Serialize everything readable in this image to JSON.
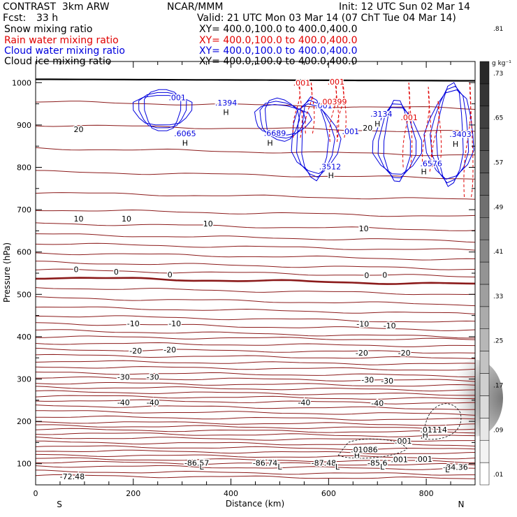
{
  "header": {
    "model": "CONTRAST  3km ARW",
    "center": "NCAR/MMM",
    "init": "Init: 12 UTC Sun 02 Mar 14",
    "fcst_label": "Fcst:",
    "fcst_value": "33 h",
    "valid": "Valid: 21 UTC Mon 03 Mar 14 (07 ChT Tue 04 Mar 14)",
    "fields": [
      {
        "name": "Snow mixing ratio",
        "xy": "XY= 400.0,100.0 to 400.0,400.0",
        "color": "#000000"
      },
      {
        "name": "Rain water mixing ratio",
        "xy": "XY= 400.0,100.0 to 400.0,400.0",
        "color": "#e00000"
      },
      {
        "name": "Cloud water mixing ratio",
        "xy": "XY= 400.0,100.0 to 400.0,400.0",
        "color": "#0000dd"
      },
      {
        "name": "Cloud ice mixing ratio",
        "xy": "XY= 400.0,100.0 to 400.0,400.0",
        "color": "#000000"
      }
    ]
  },
  "chart_data": {
    "type": "cross-section",
    "xlabel": "Distance (km)",
    "ylabel": "Pressure (hPa)",
    "xlim": [
      0,
      900
    ],
    "ylim": [
      1050,
      50
    ],
    "x_ticks": [
      0,
      200,
      400,
      600,
      800
    ],
    "y_ticks": [
      100,
      200,
      300,
      400,
      500,
      600,
      700,
      800,
      900,
      1000
    ],
    "end_labels": {
      "left": "S",
      "right": "N"
    },
    "colorbar": {
      "unit": "g kg⁻¹",
      "labels": [
        ".01",
        ".09",
        ".17",
        ".25",
        ".33",
        ".41",
        ".49",
        ".57",
        ".65",
        ".73",
        ".81"
      ]
    },
    "temperature_labels": [
      {
        "x": 75,
        "p": 70,
        "text": "-72.48"
      },
      {
        "x": 330,
        "p": 102,
        "text": "-86.57"
      },
      {
        "x": 470,
        "p": 102,
        "text": "-86.74"
      },
      {
        "x": 590,
        "p": 102,
        "text": "-87.48"
      },
      {
        "x": 700,
        "p": 102,
        "text": "-85.6"
      },
      {
        "x": 860,
        "p": 92,
        "text": "-84.36"
      },
      {
        "x": 180,
        "p": 245,
        "text": "-40"
      },
      {
        "x": 240,
        "p": 245,
        "text": "-40"
      },
      {
        "x": 550,
        "p": 245,
        "text": "-40"
      },
      {
        "x": 700,
        "p": 243,
        "text": "-40"
      },
      {
        "x": 180,
        "p": 305,
        "text": "-30"
      },
      {
        "x": 240,
        "p": 305,
        "text": "-30"
      },
      {
        "x": 680,
        "p": 298,
        "text": "-30"
      },
      {
        "x": 720,
        "p": 296,
        "text": "-30"
      },
      {
        "x": 205,
        "p": 367,
        "text": "-20"
      },
      {
        "x": 275,
        "p": 369,
        "text": "-20"
      },
      {
        "x": 668,
        "p": 362,
        "text": "-20"
      },
      {
        "x": 755,
        "p": 362,
        "text": "-20"
      },
      {
        "x": 200,
        "p": 431,
        "text": "-10"
      },
      {
        "x": 285,
        "p": 431,
        "text": "-10"
      },
      {
        "x": 670,
        "p": 430,
        "text": "-10"
      },
      {
        "x": 725,
        "p": 426,
        "text": "-10"
      },
      {
        "x": 83,
        "p": 559,
        "text": "0"
      },
      {
        "x": 165,
        "p": 553,
        "text": "0"
      },
      {
        "x": 275,
        "p": 547,
        "text": "0"
      },
      {
        "x": 678,
        "p": 545,
        "text": "0"
      },
      {
        "x": 715,
        "p": 546,
        "text": "0"
      },
      {
        "x": 88,
        "p": 679,
        "text": "10"
      },
      {
        "x": 186,
        "p": 679,
        "text": "10"
      },
      {
        "x": 353,
        "p": 667,
        "text": "10"
      },
      {
        "x": 672,
        "p": 656,
        "text": "10"
      },
      {
        "x": 88,
        "p": 890,
        "text": "20"
      },
      {
        "x": 680,
        "p": 893,
        "text": "20"
      }
    ],
    "extrema": [
      {
        "x": 340,
        "p": 93,
        "text": "L"
      },
      {
        "x": 500,
        "p": 93,
        "text": "L"
      },
      {
        "x": 618,
        "p": 93,
        "text": "L"
      },
      {
        "x": 710,
        "p": 93,
        "text": "L"
      },
      {
        "x": 843,
        "p": 86,
        "text": "L"
      },
      {
        "x": 658,
        "p": 120,
        "text": "H"
      },
      {
        "x": 798,
        "p": 168,
        "text": "H"
      },
      {
        "x": 306,
        "p": 858,
        "text": "H"
      },
      {
        "x": 480,
        "p": 858,
        "text": "H"
      },
      {
        "x": 605,
        "p": 781,
        "text": "H"
      },
      {
        "x": 795,
        "p": 790,
        "text": "H"
      },
      {
        "x": 390,
        "p": 930,
        "text": "H"
      },
      {
        "x": 700,
        "p": 903,
        "text": "H"
      },
      {
        "x": 860,
        "p": 855,
        "text": "H"
      }
    ],
    "value_labels": [
      {
        "x": 745,
        "p": 110,
        "text": ".001",
        "color": "#000000"
      },
      {
        "x": 795,
        "p": 111,
        "text": ".001",
        "color": "#000000"
      },
      {
        "x": 673,
        "p": 133,
        "text": ".01086",
        "color": "#000000"
      },
      {
        "x": 753,
        "p": 154,
        "text": ".001",
        "color": "#000000"
      },
      {
        "x": 815,
        "p": 180,
        "text": ".01114",
        "color": "#000000"
      },
      {
        "x": 306,
        "p": 880,
        "text": ".6065",
        "color": "#0000dd"
      },
      {
        "x": 490,
        "p": 881,
        "text": ".6689",
        "color": "#0000dd"
      },
      {
        "x": 603,
        "p": 802,
        "text": ".3512",
        "color": "#0000dd"
      },
      {
        "x": 810,
        "p": 809,
        "text": ".6576",
        "color": "#0000dd"
      },
      {
        "x": 390,
        "p": 953,
        "text": ".1394",
        "color": "#0000dd"
      },
      {
        "x": 708,
        "p": 926,
        "text": ".3134",
        "color": "#0000dd"
      },
      {
        "x": 870,
        "p": 878,
        "text": ".3403",
        "color": "#0000dd"
      },
      {
        "x": 290,
        "p": 965,
        "text": ".001",
        "color": "#0000dd"
      },
      {
        "x": 645,
        "p": 885,
        "text": ".001",
        "color": "#0000dd"
      },
      {
        "x": 590,
        "p": 946,
        "text": ".001",
        "color": "#0000dd"
      },
      {
        "x": 610,
        "p": 955,
        "text": ".00399",
        "color": "#e00000"
      },
      {
        "x": 765,
        "p": 918,
        "text": ".001",
        "color": "#e00000"
      },
      {
        "x": 545,
        "p": 1000,
        "text": ".001",
        "color": "#e00000"
      },
      {
        "x": 615,
        "p": 1002,
        "text": ".001",
        "color": "#e00000"
      }
    ],
    "colors": {
      "temperature": "#8b1a1a",
      "rain": "#e00000",
      "cloud": "#0000dd",
      "ground": "#000000"
    }
  }
}
